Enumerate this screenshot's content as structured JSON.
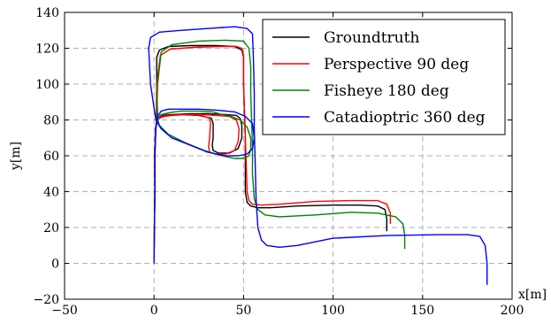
{
  "chart_data": {
    "type": "line",
    "xlabel": "x[m]",
    "ylabel": "y[m]",
    "xlim": [
      -50,
      200
    ],
    "ylim": [
      -20,
      140
    ],
    "xticks": [
      -50,
      0,
      50,
      100,
      150,
      200
    ],
    "yticks": [
      -20,
      0,
      20,
      40,
      60,
      80,
      100,
      120,
      140
    ],
    "xtick_labels": [
      "−50",
      "0",
      "50",
      "100",
      "150",
      "200"
    ],
    "ytick_labels": [
      "−20",
      "0",
      "20",
      "40",
      "60",
      "80",
      "100",
      "120",
      "140"
    ],
    "grid": true,
    "legend_position": "top-right",
    "series": [
      {
        "name": "Groundtruth",
        "color": "#000000",
        "x": [
          0,
          0.2,
          0.5,
          0.3,
          0.8,
          1.5,
          3,
          5,
          8,
          15,
          25,
          32,
          33,
          33,
          32.5,
          33,
          36,
          42,
          47,
          49,
          49,
          48,
          46,
          40,
          30,
          20,
          10,
          4,
          2,
          1.5,
          1.5,
          3,
          8,
          20,
          35,
          45,
          49,
          50,
          50,
          50.5,
          51,
          51,
          51,
          52,
          54,
          58,
          65,
          80,
          100,
          115,
          125,
          129,
          130,
          130
        ],
        "y": [
          2,
          20,
          40,
          60,
          75,
          80,
          81.5,
          82.5,
          83,
          83,
          82.5,
          81,
          78,
          70,
          66,
          63,
          61.5,
          61.5,
          64,
          70,
          77,
          81,
          82.5,
          83,
          83.5,
          83.5,
          83,
          82,
          80,
          95,
          115,
          119,
          121,
          121.5,
          121.5,
          121,
          119,
          115,
          100,
          85,
          70,
          55,
          40,
          34,
          32,
          31,
          31,
          32,
          32.5,
          32.5,
          32,
          30,
          25,
          18
        ]
      },
      {
        "name": "Perspective 90 deg",
        "color": "#ff0000",
        "x": [
          0,
          0.2,
          0.5,
          0.3,
          0.8,
          1.5,
          3,
          6,
          10,
          18,
          26,
          31,
          31.5,
          31,
          30.5,
          31,
          34,
          40,
          45,
          47,
          47.5,
          46,
          42,
          35,
          25,
          15,
          7,
          3,
          1.2,
          1.5,
          3.5,
          9,
          22,
          36,
          46,
          49,
          50,
          50,
          50.5,
          51,
          51.5,
          52,
          53,
          55,
          60,
          70,
          90,
          110,
          125,
          130,
          132,
          132
        ],
        "y": [
          2,
          20,
          40,
          60,
          75,
          80,
          81,
          82,
          82.5,
          83,
          82.5,
          81,
          78,
          70,
          65,
          62,
          61,
          61,
          63,
          68,
          75,
          80,
          82,
          82.5,
          83,
          83,
          82.5,
          81.5,
          80,
          100,
          116,
          119.5,
          120.5,
          121,
          121,
          120,
          116,
          100,
          85,
          70,
          55,
          40,
          35,
          33,
          32.5,
          33,
          34.5,
          35,
          35,
          33,
          28,
          22
        ]
      },
      {
        "name": "Fisheye 180 deg",
        "color": "#008000",
        "x": [
          0,
          0.2,
          0.5,
          0.5,
          1,
          2,
          4,
          8,
          15,
          25,
          33,
          38,
          43,
          48,
          52,
          54,
          54,
          53,
          50,
          45,
          38,
          28,
          18,
          8,
          3,
          1.5,
          2,
          4,
          10,
          25,
          40,
          50,
          53,
          54,
          54,
          54.5,
          55,
          55,
          56,
          58,
          62,
          70,
          90,
          110,
          125,
          135,
          139,
          140,
          140
        ],
        "y": [
          2,
          20,
          40,
          60,
          75,
          81,
          83,
          84,
          85,
          85,
          84.5,
          83,
          82,
          80,
          76,
          70,
          64,
          60,
          58.5,
          58.5,
          60,
          63,
          67,
          72,
          77,
          82,
          100,
          118,
          122,
          124,
          124.5,
          124,
          120,
          110,
          95,
          80,
          65,
          50,
          36,
          30,
          27,
          26,
          27,
          28.5,
          28,
          26,
          22,
          16,
          8
        ]
      },
      {
        "name": "Catadioptric 360 deg",
        "color": "#0000ff",
        "x": [
          0,
          0.2,
          0.4,
          0.5,
          1,
          2,
          4,
          8,
          15,
          25,
          35,
          45,
          51,
          55,
          56,
          55,
          52,
          47,
          40,
          30,
          20,
          10,
          4,
          1,
          -2,
          -3,
          -2,
          3,
          15,
          30,
          45,
          52,
          55,
          55.5,
          56,
          56,
          56.5,
          57,
          58,
          60,
          63,
          70,
          80,
          100,
          130,
          160,
          175,
          182,
          185,
          186,
          186
        ],
        "y": [
          0,
          20,
          40,
          60,
          75,
          82,
          85,
          86,
          86,
          86,
          85.5,
          84.5,
          82,
          78,
          70,
          64,
          61,
          60,
          60,
          62,
          66,
          70,
          75,
          80,
          100,
          120,
          126,
          129,
          130,
          131,
          132,
          131,
          128,
          115,
          95,
          75,
          55,
          35,
          20,
          13,
          10,
          9,
          10,
          14,
          15.5,
          16,
          16,
          15,
          10,
          0,
          -12
        ]
      }
    ]
  }
}
